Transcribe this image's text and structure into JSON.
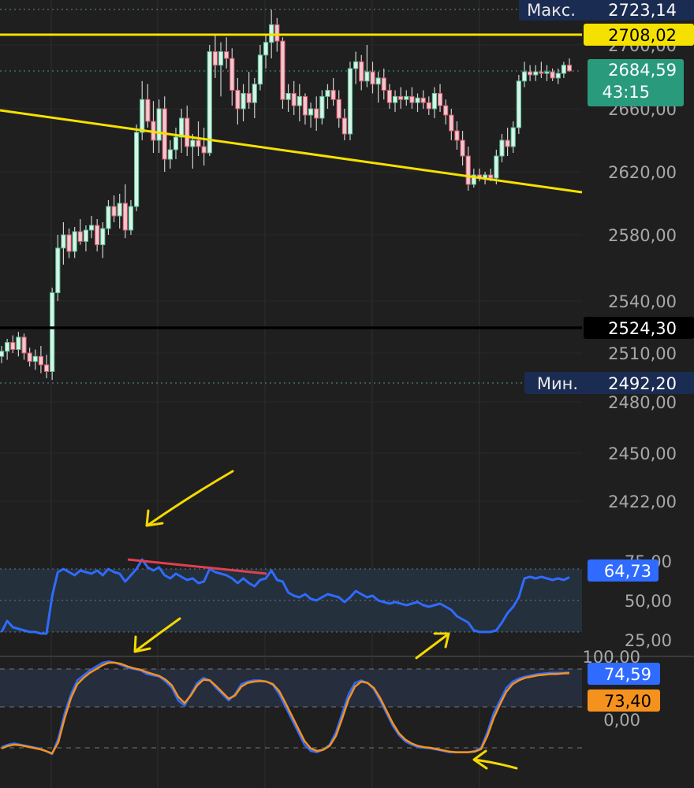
{
  "chart_data": [
    {
      "type": "candlestick",
      "title": "",
      "y_axis_ticks": [
        "2700,00",
        "2660,00",
        "2620,00",
        "2580,00",
        "2540,00",
        "2510,00",
        "2480,00",
        "2450,00",
        "2422,00"
      ],
      "ylim": [
        2400,
        2730
      ],
      "labels": {
        "max_label": "Макс.",
        "max_value": "2723,14",
        "min_label": "Мин.",
        "min_value": "2492,20",
        "resistance_value": "2708,02",
        "last_price": "2684,59",
        "countdown": "43:15",
        "support_value": "2524,30"
      },
      "horizontal_lines": [
        {
          "name": "resistance",
          "price": 2708.02,
          "color": "#f5e100"
        },
        {
          "name": "support",
          "price": 2524.3,
          "color": "#000000"
        }
      ],
      "trendline": {
        "from": [
          0,
          2660
        ],
        "to": [
          104,
          2612
        ],
        "color": "#f5e100"
      },
      "max": 2723.14,
      "min": 2492.2,
      "last": 2684.59,
      "candles": [
        [
          2508,
          2514,
          2504,
          2511
        ],
        [
          2511,
          2518,
          2506,
          2516
        ],
        [
          2516,
          2520,
          2510,
          2512
        ],
        [
          2512,
          2522,
          2508,
          2519
        ],
        [
          2519,
          2521,
          2506,
          2510
        ],
        [
          2510,
          2513,
          2502,
          2505
        ],
        [
          2505,
          2512,
          2500,
          2508
        ],
        [
          2508,
          2514,
          2498,
          2503
        ],
        [
          2503,
          2509,
          2495,
          2499
        ],
        [
          2499,
          2548,
          2494,
          2545
        ],
        [
          2545,
          2580,
          2540,
          2572
        ],
        [
          2572,
          2588,
          2562,
          2580
        ],
        [
          2580,
          2584,
          2566,
          2570
        ],
        [
          2570,
          2585,
          2566,
          2582
        ],
        [
          2582,
          2590,
          2574,
          2576
        ],
        [
          2576,
          2586,
          2570,
          2583
        ],
        [
          2583,
          2592,
          2578,
          2586
        ],
        [
          2586,
          2590,
          2570,
          2574
        ],
        [
          2574,
          2588,
          2566,
          2584
        ],
        [
          2584,
          2602,
          2580,
          2598
        ],
        [
          2598,
          2605,
          2588,
          2592
        ],
        [
          2592,
          2606,
          2584,
          2600
        ],
        [
          2600,
          2612,
          2578,
          2583
        ],
        [
          2583,
          2602,
          2580,
          2598
        ],
        [
          2598,
          2650,
          2595,
          2645
        ],
        [
          2645,
          2678,
          2640,
          2666
        ],
        [
          2666,
          2676,
          2648,
          2652
        ],
        [
          2652,
          2665,
          2632,
          2640
        ],
        [
          2640,
          2666,
          2632,
          2660
        ],
        [
          2660,
          2668,
          2620,
          2628
        ],
        [
          2628,
          2640,
          2622,
          2634
        ],
        [
          2634,
          2648,
          2628,
          2642
        ],
        [
          2642,
          2660,
          2632,
          2654
        ],
        [
          2654,
          2662,
          2630,
          2636
        ],
        [
          2636,
          2644,
          2622,
          2640
        ],
        [
          2640,
          2652,
          2630,
          2636
        ],
        [
          2636,
          2648,
          2624,
          2632
        ],
        [
          2632,
          2700,
          2630,
          2696
        ],
        [
          2696,
          2708,
          2680,
          2688
        ],
        [
          2688,
          2702,
          2668,
          2696
        ],
        [
          2696,
          2706,
          2686,
          2692
        ],
        [
          2692,
          2698,
          2662,
          2672
        ],
        [
          2672,
          2680,
          2650,
          2660
        ],
        [
          2660,
          2676,
          2652,
          2670
        ],
        [
          2670,
          2684,
          2660,
          2664
        ],
        [
          2664,
          2680,
          2654,
          2676
        ],
        [
          2676,
          2700,
          2672,
          2694
        ],
        [
          2694,
          2708,
          2686,
          2702
        ],
        [
          2702,
          2723,
          2692,
          2714
        ],
        [
          2714,
          2718,
          2696,
          2703
        ],
        [
          2703,
          2706,
          2660,
          2666
        ],
        [
          2666,
          2676,
          2658,
          2670
        ],
        [
          2670,
          2678,
          2656,
          2662
        ],
        [
          2662,
          2676,
          2652,
          2668
        ],
        [
          2668,
          2670,
          2650,
          2656
        ],
        [
          2656,
          2664,
          2648,
          2660
        ],
        [
          2660,
          2668,
          2646,
          2654
        ],
        [
          2654,
          2672,
          2650,
          2668
        ],
        [
          2668,
          2676,
          2660,
          2672
        ],
        [
          2672,
          2680,
          2662,
          2666
        ],
        [
          2666,
          2672,
          2648,
          2654
        ],
        [
          2654,
          2660,
          2640,
          2644
        ],
        [
          2644,
          2690,
          2640,
          2686
        ],
        [
          2686,
          2696,
          2676,
          2690
        ],
        [
          2690,
          2694,
          2672,
          2678
        ],
        [
          2678,
          2700,
          2674,
          2684
        ],
        [
          2684,
          2690,
          2670,
          2676
        ],
        [
          2676,
          2684,
          2664,
          2680
        ],
        [
          2680,
          2686,
          2666,
          2672
        ],
        [
          2672,
          2676,
          2660,
          2664
        ],
        [
          2664,
          2672,
          2658,
          2668
        ],
        [
          2668,
          2674,
          2660,
          2666
        ],
        [
          2666,
          2672,
          2662,
          2668
        ],
        [
          2668,
          2674,
          2660,
          2664
        ],
        [
          2664,
          2670,
          2658,
          2667
        ],
        [
          2667,
          2672,
          2660,
          2664
        ],
        [
          2664,
          2668,
          2656,
          2660
        ],
        [
          2660,
          2674,
          2654,
          2670
        ],
        [
          2670,
          2676,
          2658,
          2662
        ],
        [
          2662,
          2666,
          2650,
          2656
        ],
        [
          2656,
          2660,
          2640,
          2646
        ],
        [
          2646,
          2652,
          2634,
          2640
        ],
        [
          2640,
          2646,
          2624,
          2630
        ],
        [
          2630,
          2636,
          2608,
          2612
        ],
        [
          2612,
          2622,
          2610,
          2618
        ],
        [
          2618,
          2622,
          2614,
          2616
        ],
        [
          2616,
          2620,
          2612,
          2618
        ],
        [
          2618,
          2622,
          2614,
          2616
        ],
        [
          2616,
          2634,
          2612,
          2630
        ],
        [
          2630,
          2644,
          2626,
          2640
        ],
        [
          2640,
          2648,
          2630,
          2636
        ],
        [
          2636,
          2652,
          2632,
          2648
        ],
        [
          2648,
          2682,
          2644,
          2678
        ],
        [
          2678,
          2690,
          2674,
          2684
        ],
        [
          2684,
          2688,
          2678,
          2682
        ],
        [
          2682,
          2688,
          2678,
          2684
        ],
        [
          2684,
          2690,
          2680,
          2683
        ],
        [
          2683,
          2688,
          2678,
          2684
        ],
        [
          2684,
          2686,
          2678,
          2680
        ],
        [
          2680,
          2686,
          2676,
          2683
        ],
        [
          2683,
          2690,
          2680,
          2688
        ],
        [
          2688,
          2692,
          2684,
          2684.59
        ]
      ]
    },
    {
      "type": "line",
      "title": "",
      "y_axis_ticks": [
        "75,00",
        "50,00",
        "25,00"
      ],
      "ylim": [
        20,
        80
      ],
      "overbought": 70,
      "midline": 50,
      "oversold": 30,
      "current_value_label": "64,73",
      "series": [
        {
          "color": "#2f6bff",
          "values": [
            30,
            37,
            33,
            32,
            31,
            30,
            30,
            29,
            29,
            53,
            68,
            70,
            68,
            66,
            69,
            68,
            67,
            69,
            66,
            70,
            68,
            67,
            62,
            66,
            70,
            76,
            71,
            69,
            71,
            66,
            64,
            67,
            65,
            63,
            64,
            61,
            62,
            70,
            68,
            67,
            66,
            64,
            61,
            64,
            61,
            59,
            63,
            64,
            69,
            63,
            62,
            55,
            53,
            52,
            54,
            51,
            50,
            52,
            54,
            53,
            52,
            49,
            52,
            56,
            54,
            52,
            53,
            50,
            49,
            48,
            49,
            48,
            47,
            48,
            49,
            47,
            46,
            47,
            48,
            46,
            44,
            40,
            38,
            36,
            31,
            30,
            30,
            30,
            31,
            36,
            42,
            46,
            52,
            64,
            65,
            64,
            65,
            64,
            63,
            64,
            63,
            64.73
          ]
        }
      ],
      "divergence_line": {
        "from": [
          25,
          76
        ],
        "to": [
          50,
          67
        ],
        "color": "#e04050"
      }
    },
    {
      "type": "line",
      "title": "",
      "y_axis_ticks": [
        "100,00",
        "0,00"
      ],
      "ylim": [
        -60,
        110
      ],
      "levels": [
        80,
        20
      ],
      "values_labels": [
        "74,59",
        "73,40"
      ],
      "series": [
        {
          "color": "#2f6bff",
          "values": [
            -44,
            -40,
            -38,
            -40,
            -42,
            -44,
            -46,
            -50,
            -55,
            -30,
            10,
            40,
            62,
            70,
            78,
            84,
            90,
            92,
            90,
            86,
            82,
            80,
            78,
            72,
            70,
            68,
            60,
            50,
            30,
            22,
            40,
            58,
            66,
            62,
            50,
            40,
            30,
            40,
            56,
            60,
            62,
            62,
            60,
            55,
            40,
            20,
            0,
            -20,
            -40,
            -50,
            -52,
            -48,
            -40,
            -20,
            10,
            40,
            58,
            62,
            58,
            48,
            30,
            10,
            -10,
            -25,
            -35,
            -40,
            -44,
            -45,
            -46,
            -48,
            -50,
            -52,
            -52,
            -52,
            -52,
            -50,
            -45,
            -20,
            10,
            30,
            50,
            60,
            65,
            68,
            70,
            72,
            73,
            74,
            74,
            74,
            74.59
          ]
        },
        {
          "color": "#f5921e",
          "values": [
            -46,
            -42,
            -40,
            -41,
            -43,
            -45,
            -47,
            -50,
            -54,
            -36,
            2,
            34,
            56,
            66,
            74,
            80,
            86,
            90,
            90,
            88,
            84,
            81,
            79,
            75,
            72,
            69,
            63,
            54,
            36,
            26,
            38,
            54,
            63,
            62,
            53,
            43,
            33,
            38,
            52,
            58,
            60,
            61,
            60,
            56,
            45,
            26,
            6,
            -14,
            -34,
            -46,
            -50,
            -48,
            -42,
            -26,
            2,
            32,
            52,
            60,
            58,
            50,
            34,
            14,
            -6,
            -22,
            -32,
            -38,
            -42,
            -44,
            -45,
            -47,
            -49,
            -51,
            -52,
            -52,
            -52,
            -51,
            -47,
            -26,
            2,
            24,
            44,
            56,
            62,
            66,
            68,
            70,
            71,
            72,
            72,
            73,
            73.4
          ]
        }
      ]
    }
  ],
  "icons": [
    "arrow-down-left-icon",
    "arrow-down-left-icon",
    "arrow-up-right-icon",
    "arrow-left-icon"
  ]
}
